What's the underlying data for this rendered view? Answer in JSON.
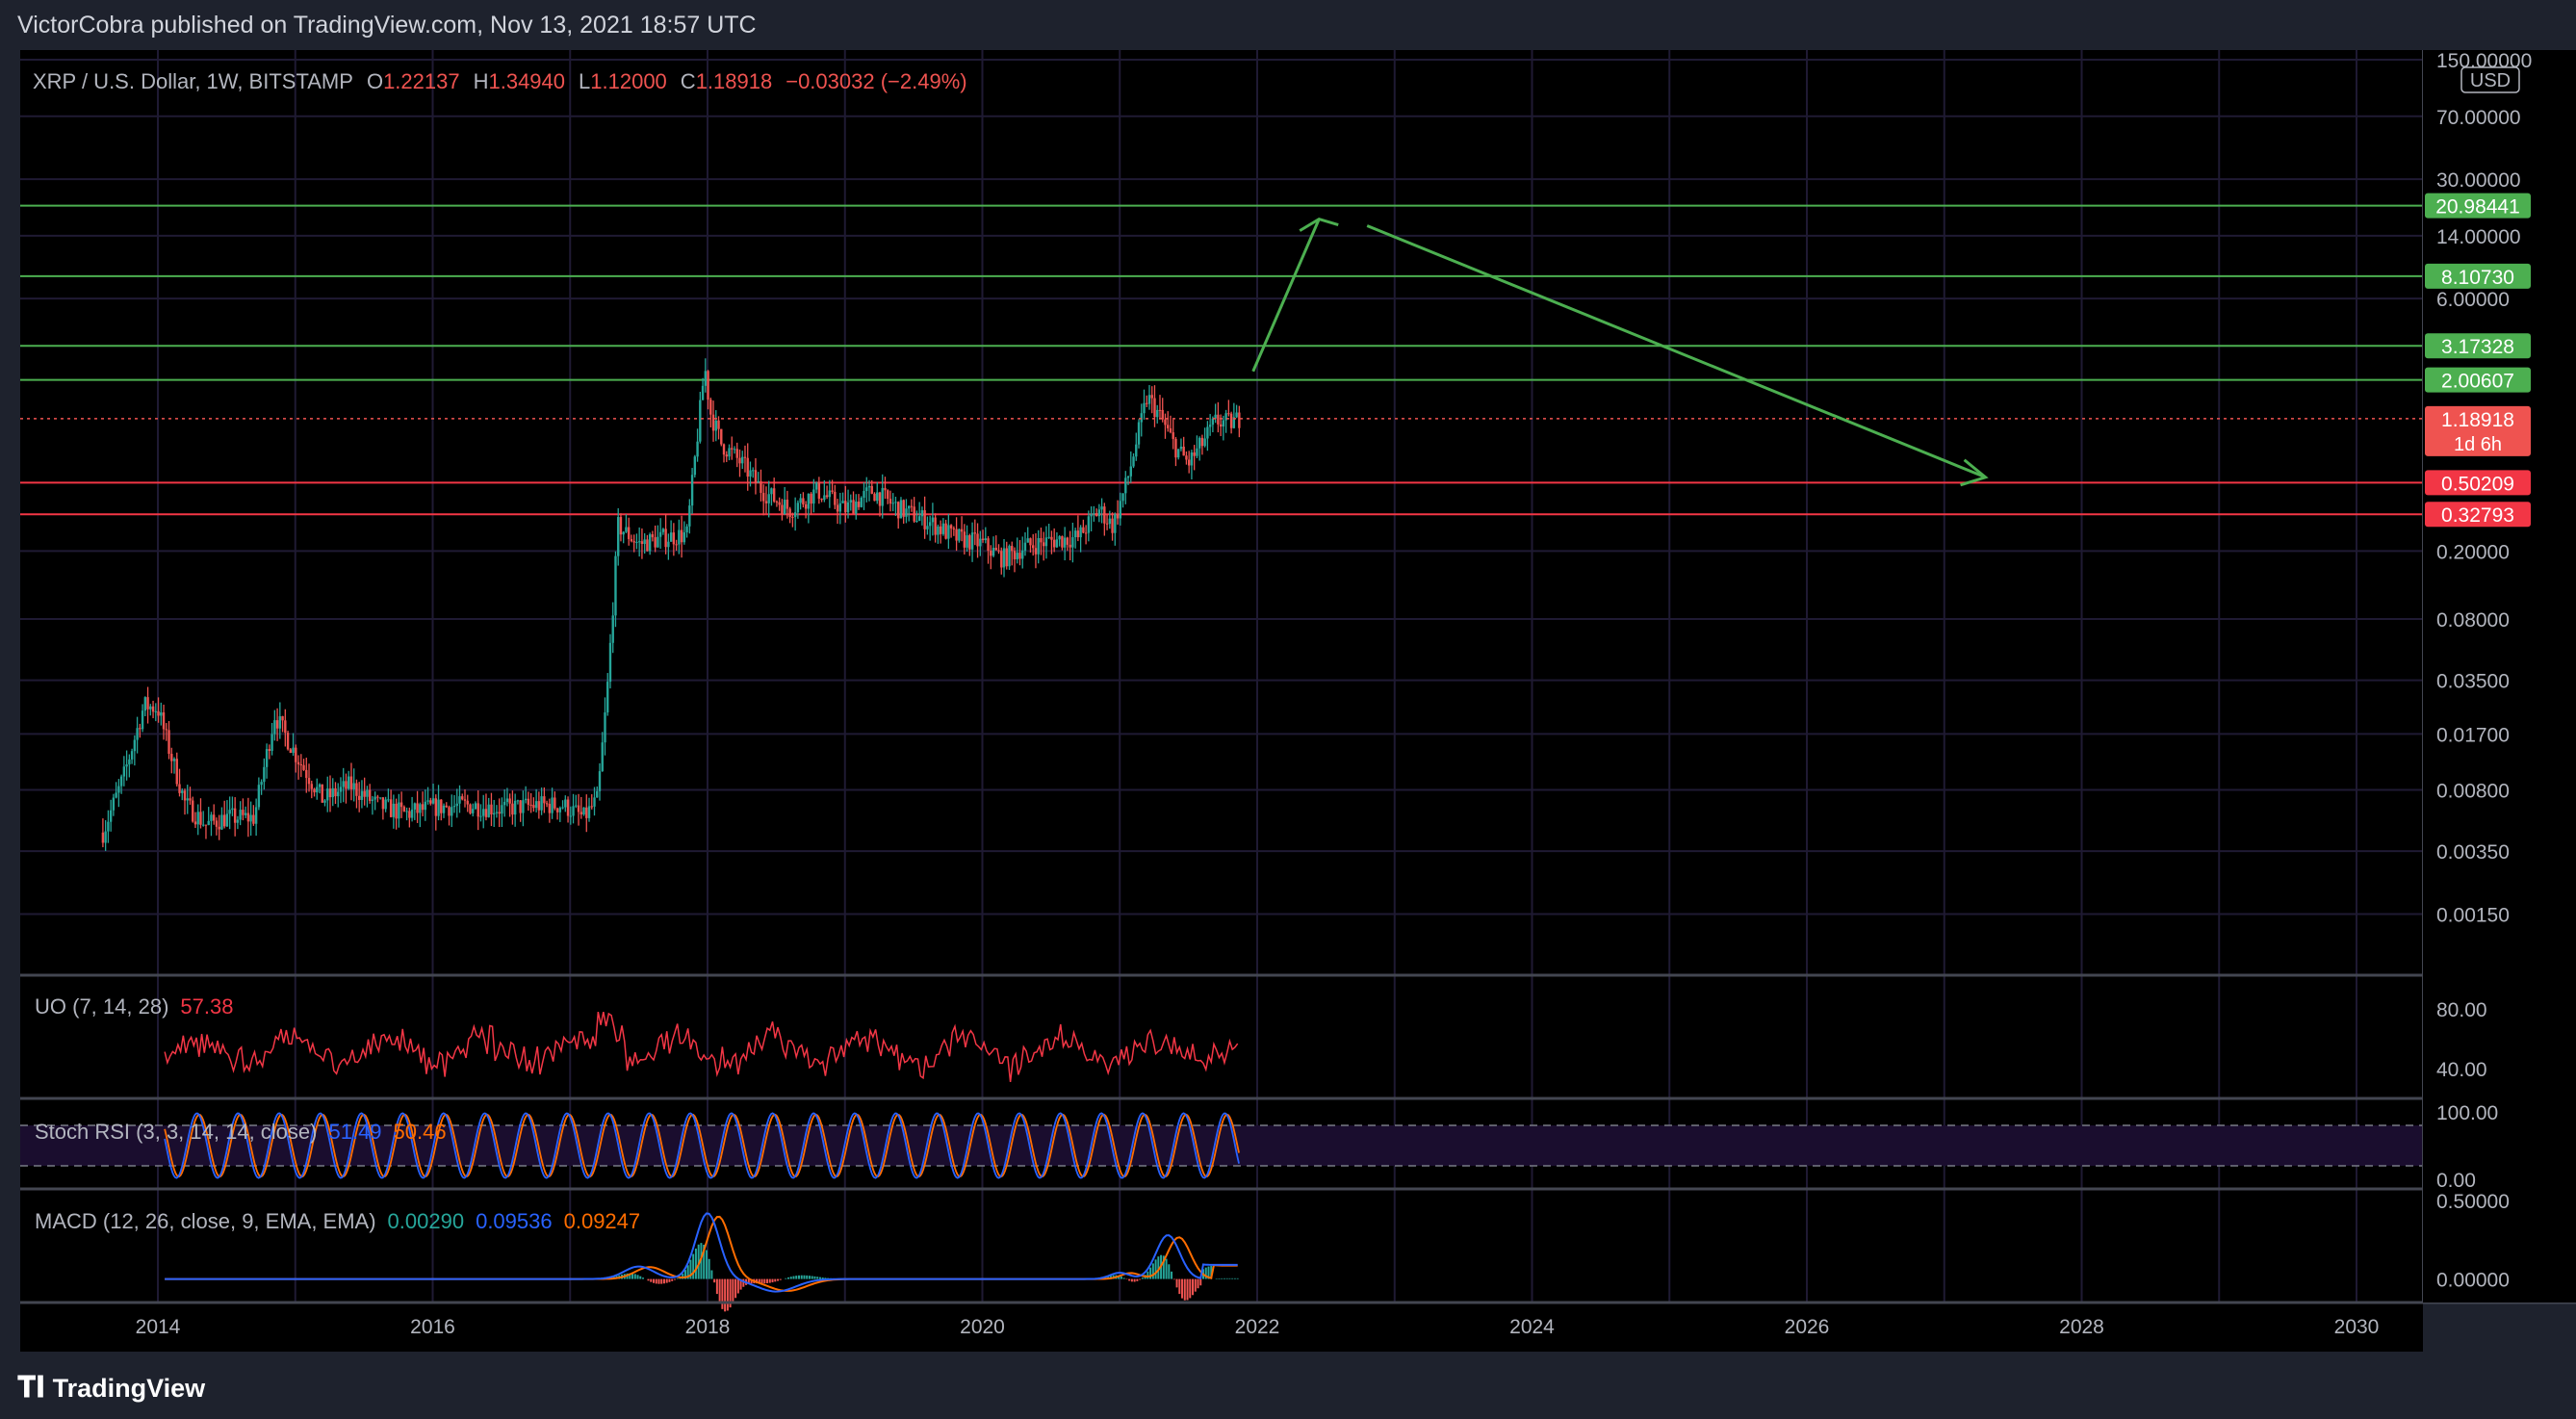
{
  "header": "VictorCobra published on TradingView.com, Nov 13, 2021 18:57 UTC",
  "footer": {
    "brand": "TradingView",
    "logo_icon": "tradingview-logo-icon"
  },
  "colors": {
    "bg": "#000000",
    "frame": "#1e222d",
    "grid": "#1f1a33",
    "text": "#b2b5be",
    "up": "#26a69a",
    "down": "#ef5350",
    "green": "#4caf50",
    "red": "#f23645",
    "blue": "#2962ff",
    "orange": "#ff6d00",
    "rsi_band": "#1a0d2e"
  },
  "legend": {
    "symbol": "XRP / U.S. Dollar, 1W, BITSTAMP",
    "o_label": "O",
    "o_value": "1.22137",
    "h_label": "H",
    "h_value": "1.34940",
    "l_label": "L",
    "l_value": "1.12000",
    "c_label": "C",
    "c_value": "1.18918",
    "change": "−0.03032 (−2.49%)"
  },
  "price_scale": {
    "currency": "USD",
    "ticks": [
      "150.00000",
      "70.00000",
      "30.00000",
      "14.00000",
      "6.00000",
      "0.20000",
      "0.08000",
      "0.03500",
      "0.01700",
      "0.00800",
      "0.00350",
      "0.00150"
    ]
  },
  "level_labels": [
    {
      "value": "20.98441",
      "kind": "support-resistance",
      "color": "#4caf50"
    },
    {
      "value": "8.10730",
      "kind": "support-resistance",
      "color": "#4caf50"
    },
    {
      "value": "3.17328",
      "kind": "support-resistance",
      "color": "#4caf50"
    },
    {
      "value": "2.00607",
      "kind": "support-resistance",
      "color": "#4caf50"
    },
    {
      "value": "0.50209",
      "kind": "support",
      "color": "#f23645"
    },
    {
      "value": "0.32793",
      "kind": "support",
      "color": "#f23645"
    }
  ],
  "last_price": {
    "value": "1.18918",
    "countdown": "1d 6h"
  },
  "time_axis": [
    "2014",
    "2016",
    "2018",
    "2020",
    "2022",
    "2024",
    "2026",
    "2028",
    "2030"
  ],
  "uo": {
    "label": "UO (7, 14, 28)",
    "value": "57.38",
    "ticks": [
      "80.00",
      "40.00"
    ]
  },
  "stoch_rsi": {
    "label": "Stoch RSI (3, 3, 14, 14, close)",
    "k_value": "51.49",
    "d_value": "50.46",
    "ticks": [
      "100.00",
      "0.00"
    ]
  },
  "macd": {
    "label": "MACD (12, 26, close, 9, EMA, EMA)",
    "hist_value": "0.00290",
    "macd_value": "0.09536",
    "signal_value": "0.09247",
    "ticks": [
      "0.50000",
      "0.00000"
    ]
  },
  "chart_data": {
    "type": "candlestick",
    "title": "XRP / U.S. Dollar, 1W, BITSTAMP",
    "y_scale": "log",
    "ylim": [
      0.0011,
      200
    ],
    "xlim": [
      2012.85,
      2030.65
    ],
    "x": [
      2013.6,
      2013.75,
      2013.9,
      2014.0,
      2014.08,
      2014.2,
      2014.35,
      2014.5,
      2014.7,
      2014.85,
      2015.0,
      2015.2,
      2015.4,
      2015.6,
      2015.8,
      2016.0,
      2016.25,
      2016.5,
      2016.75,
      2016.95,
      2017.1,
      2017.2,
      2017.27,
      2017.35,
      2017.5,
      2017.7,
      2017.85,
      2017.98,
      2018.02,
      2018.1,
      2018.25,
      2018.4,
      2018.6,
      2018.8,
      2019.0,
      2019.2,
      2019.4,
      2019.6,
      2019.8,
      2020.0,
      2020.15,
      2020.3,
      2020.5,
      2020.7,
      2020.85,
      2020.95,
      2021.05,
      2021.2,
      2021.3,
      2021.4,
      2021.5,
      2021.6,
      2021.7,
      2021.8,
      2021.87
    ],
    "close": [
      0.0045,
      0.0095,
      0.025,
      0.024,
      0.014,
      0.0066,
      0.005,
      0.0055,
      0.0055,
      0.022,
      0.013,
      0.007,
      0.0085,
      0.0065,
      0.0058,
      0.0063,
      0.0065,
      0.0062,
      0.0065,
      0.0065,
      0.0055,
      0.007,
      0.03,
      0.28,
      0.22,
      0.24,
      0.25,
      2.4,
      1.3,
      0.85,
      0.65,
      0.45,
      0.35,
      0.45,
      0.35,
      0.45,
      0.35,
      0.3,
      0.24,
      0.22,
      0.18,
      0.21,
      0.23,
      0.24,
      0.35,
      0.28,
      0.5,
      1.6,
      1.2,
      0.82,
      0.65,
      0.85,
      1.15,
      1.12,
      1.19
    ],
    "levels": [
      20.98441,
      8.1073,
      3.17328,
      2.00607,
      0.50209,
      0.32793
    ],
    "projection_path": [
      [
        2021.97,
        2.25
      ],
      [
        2022.45,
        17.5
      ],
      [
        2022.8,
        16.0
      ],
      [
        2027.3,
        0.54
      ]
    ],
    "uo_range": [
      20,
      100
    ],
    "stoch_range": [
      0,
      100
    ],
    "macd_range": [
      -0.15,
      0.55
    ]
  }
}
